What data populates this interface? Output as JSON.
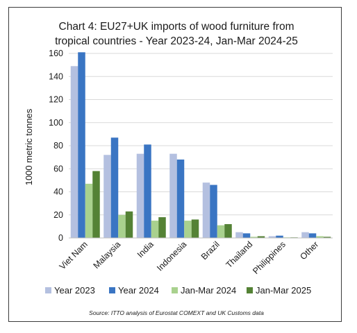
{
  "chart_data": {
    "type": "bar",
    "title_lines": [
      "Chart 4: EU27+UK imports of wood furniture from",
      "tropical countries - Year 2023-24, Jan-Mar 2024-25"
    ],
    "ylabel": "1000 metric tonnes",
    "xlabel": "",
    "ylim": [
      0,
      160
    ],
    "yticks": [
      "0",
      "20",
      "40",
      "60",
      "80",
      "100",
      "120",
      "140",
      "160"
    ],
    "grid": true,
    "legend_position": "bottom",
    "categories": [
      "Viet Nam",
      "Malaysia",
      "India",
      "Indonesia",
      "Brazil",
      "Thailand",
      "Philippines",
      "Other"
    ],
    "series": [
      {
        "name": "Year 2023",
        "color": "#b4c0e0",
        "values": [
          149,
          72,
          73,
          73,
          48,
          5,
          1.5,
          5
        ]
      },
      {
        "name": "Year 2024",
        "color": "#3a75c3",
        "values": [
          161,
          87,
          81,
          68,
          46,
          4,
          2,
          4
        ]
      },
      {
        "name": "Jan-Mar 2024",
        "color": "#a9d18e",
        "values": [
          47,
          20,
          15,
          15,
          11,
          1,
          0.5,
          1.5
        ]
      },
      {
        "name": "Jan-Mar 2025",
        "color": "#548235",
        "values": [
          58,
          23,
          18,
          16,
          12,
          1.5,
          0.5,
          1
        ]
      }
    ],
    "source": "Source: ITTO analysis of Eurostat COMEXT and UK Customs data"
  }
}
